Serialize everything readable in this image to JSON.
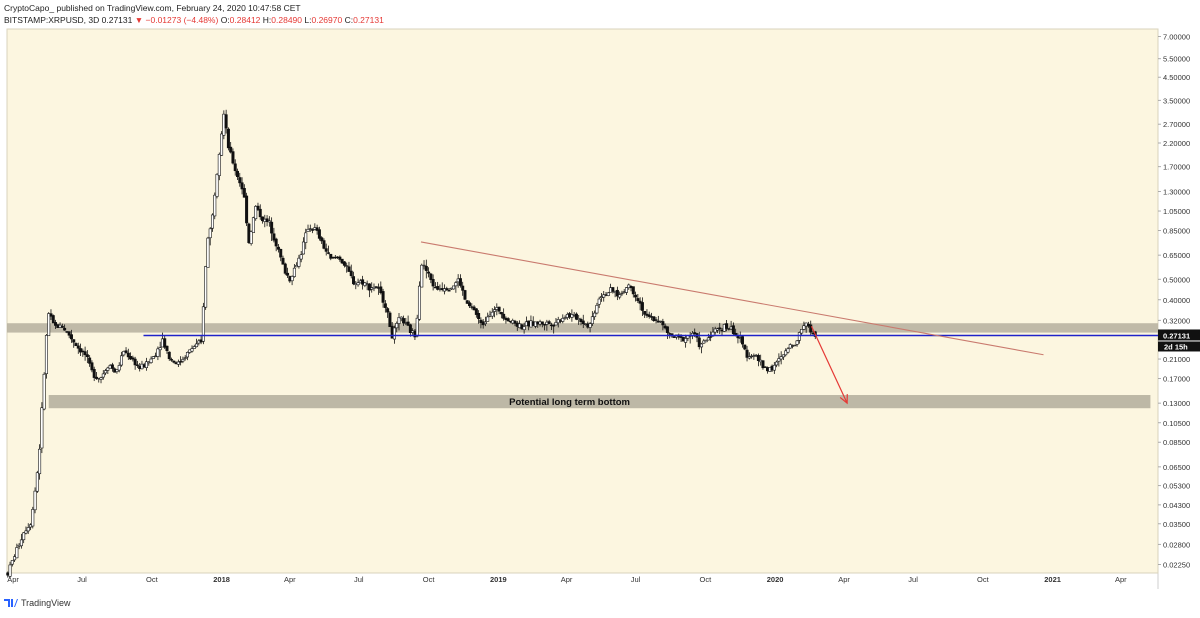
{
  "header": {
    "publisher": "CryptoCapo_",
    "published_text": "published on TradingView.com, February 24, 2020 10:47:58 CET",
    "symbol": "BITSTAMP:XRPUSD, 3D",
    "last": "0.27131",
    "change_arrow": "▼",
    "change": "−0.01273 (−4.48%)",
    "o_label": "O:",
    "o_val": "0.28412",
    "h_label": "H:",
    "h_val": "0.28490",
    "l_label": "L:",
    "l_val": "0.26970",
    "c_label": "C:",
    "c_val": "0.27131"
  },
  "footer": {
    "brand": "TradingView"
  },
  "chart_data": {
    "type": "candlestick",
    "title": "BITSTAMP:XRPUSD, 3D",
    "yscale": "log",
    "ylim": [
      0.0205,
      7.6
    ],
    "xlim": [
      "2017-03-24",
      "2021-05-20"
    ],
    "y_tick_labels": [
      "7.00000",
      "5.50000",
      "4.50000",
      "3.50000",
      "2.70000",
      "2.20000",
      "1.70000",
      "1.30000",
      "1.05000",
      "0.85000",
      "0.65000",
      "0.50000",
      "0.40000",
      "0.32000",
      "0.21000",
      "0.17000",
      "0.13000",
      "0.10500",
      "0.08500",
      "0.06500",
      "0.05300",
      "0.04300",
      "0.03500",
      "0.02800",
      "0.02250"
    ],
    "x_tick_labels": [
      {
        "label": "Apr",
        "date": "2017-04-01",
        "bold": false
      },
      {
        "label": "Jul",
        "date": "2017-07-01",
        "bold": false
      },
      {
        "label": "Oct",
        "date": "2017-10-01",
        "bold": false
      },
      {
        "label": "2018",
        "date": "2018-01-01",
        "bold": true
      },
      {
        "label": "Apr",
        "date": "2018-04-01",
        "bold": false
      },
      {
        "label": "Jul",
        "date": "2018-07-01",
        "bold": false
      },
      {
        "label": "Oct",
        "date": "2018-10-01",
        "bold": false
      },
      {
        "label": "2019",
        "date": "2019-01-01",
        "bold": true
      },
      {
        "label": "Apr",
        "date": "2019-04-01",
        "bold": false
      },
      {
        "label": "Jul",
        "date": "2019-07-01",
        "bold": false
      },
      {
        "label": "Oct",
        "date": "2019-10-01",
        "bold": false
      },
      {
        "label": "2020",
        "date": "2020-01-01",
        "bold": true
      },
      {
        "label": "Apr",
        "date": "2020-04-01",
        "bold": false
      },
      {
        "label": "Jul",
        "date": "2020-07-01",
        "bold": false
      },
      {
        "label": "Oct",
        "date": "2020-10-01",
        "bold": false
      },
      {
        "label": "2021",
        "date": "2021-01-01",
        "bold": true
      },
      {
        "label": "Apr",
        "date": "2021-04-01",
        "bold": false
      }
    ],
    "price_path": [
      [
        "2017-03-25",
        0.0205
      ],
      [
        "2017-04-05",
        0.026
      ],
      [
        "2017-04-15",
        0.032
      ],
      [
        "2017-04-25",
        0.036
      ],
      [
        "2017-05-05",
        0.07
      ],
      [
        "2017-05-12",
        0.18
      ],
      [
        "2017-05-17",
        0.35
      ],
      [
        "2017-05-25",
        0.3
      ],
      [
        "2017-06-05",
        0.3
      ],
      [
        "2017-06-15",
        0.27
      ],
      [
        "2017-06-25",
        0.24
      ],
      [
        "2017-07-05",
        0.22
      ],
      [
        "2017-07-15",
        0.18
      ],
      [
        "2017-07-25",
        0.17
      ],
      [
        "2017-08-05",
        0.2
      ],
      [
        "2017-08-15",
        0.18
      ],
      [
        "2017-08-25",
        0.23
      ],
      [
        "2017-09-05",
        0.21
      ],
      [
        "2017-09-15",
        0.19
      ],
      [
        "2017-09-25",
        0.2
      ],
      [
        "2017-10-05",
        0.22
      ],
      [
        "2017-10-15",
        0.26
      ],
      [
        "2017-10-25",
        0.21
      ],
      [
        "2017-11-05",
        0.2
      ],
      [
        "2017-11-15",
        0.22
      ],
      [
        "2017-11-25",
        0.24
      ],
      [
        "2017-12-05",
        0.25
      ],
      [
        "2017-12-13",
        0.75
      ],
      [
        "2017-12-20",
        1.0
      ],
      [
        "2017-12-28",
        1.9
      ],
      [
        "2018-01-04",
        3.0
      ],
      [
        "2018-01-10",
        2.1
      ],
      [
        "2018-01-20",
        1.6
      ],
      [
        "2018-01-30",
        1.3
      ],
      [
        "2018-02-06",
        0.75
      ],
      [
        "2018-02-15",
        1.1
      ],
      [
        "2018-02-25",
        0.95
      ],
      [
        "2018-03-05",
        0.92
      ],
      [
        "2018-03-15",
        0.72
      ],
      [
        "2018-03-25",
        0.55
      ],
      [
        "2018-04-01",
        0.5
      ],
      [
        "2018-04-15",
        0.65
      ],
      [
        "2018-04-25",
        0.88
      ],
      [
        "2018-05-05",
        0.86
      ],
      [
        "2018-05-15",
        0.72
      ],
      [
        "2018-05-25",
        0.62
      ],
      [
        "2018-06-05",
        0.64
      ],
      [
        "2018-06-15",
        0.56
      ],
      [
        "2018-06-25",
        0.48
      ],
      [
        "2018-07-05",
        0.49
      ],
      [
        "2018-07-15",
        0.46
      ],
      [
        "2018-07-25",
        0.46
      ],
      [
        "2018-08-05",
        0.38
      ],
      [
        "2018-08-14",
        0.27
      ],
      [
        "2018-08-25",
        0.33
      ],
      [
        "2018-09-05",
        0.29
      ],
      [
        "2018-09-14",
        0.27
      ],
      [
        "2018-09-21",
        0.6
      ],
      [
        "2018-09-28",
        0.55
      ],
      [
        "2018-10-10",
        0.45
      ],
      [
        "2018-10-20",
        0.46
      ],
      [
        "2018-11-01",
        0.46
      ],
      [
        "2018-11-10",
        0.5
      ],
      [
        "2018-11-20",
        0.38
      ],
      [
        "2018-11-30",
        0.36
      ],
      [
        "2018-12-10",
        0.3
      ],
      [
        "2018-12-20",
        0.35
      ],
      [
        "2019-01-01",
        0.36
      ],
      [
        "2019-01-15",
        0.32
      ],
      [
        "2019-02-01",
        0.3
      ],
      [
        "2019-02-15",
        0.31
      ],
      [
        "2019-03-01",
        0.31
      ],
      [
        "2019-03-15",
        0.31
      ],
      [
        "2019-04-01",
        0.34
      ],
      [
        "2019-04-15",
        0.33
      ],
      [
        "2019-05-01",
        0.3
      ],
      [
        "2019-05-15",
        0.42
      ],
      [
        "2019-05-30",
        0.44
      ],
      [
        "2019-06-10",
        0.42
      ],
      [
        "2019-06-22",
        0.47
      ],
      [
        "2019-07-05",
        0.4
      ],
      [
        "2019-07-15",
        0.33
      ],
      [
        "2019-08-01",
        0.32
      ],
      [
        "2019-08-15",
        0.27
      ],
      [
        "2019-09-01",
        0.26
      ],
      [
        "2019-09-15",
        0.28
      ],
      [
        "2019-09-25",
        0.24
      ],
      [
        "2019-10-10",
        0.28
      ],
      [
        "2019-10-25",
        0.3
      ],
      [
        "2019-11-05",
        0.29
      ],
      [
        "2019-11-15",
        0.26
      ],
      [
        "2019-11-25",
        0.22
      ],
      [
        "2019-12-05",
        0.22
      ],
      [
        "2019-12-18",
        0.19
      ],
      [
        "2019-12-28",
        0.19
      ],
      [
        "2020-01-08",
        0.21
      ],
      [
        "2020-01-20",
        0.24
      ],
      [
        "2020-01-30",
        0.26
      ],
      [
        "2020-02-10",
        0.32
      ],
      [
        "2020-02-15",
        0.29
      ],
      [
        "2020-02-24",
        0.27131
      ]
    ],
    "annotations": {
      "resistance_band": {
        "y_low": 0.28,
        "y_high": 0.31,
        "x_start": "2017-03-24",
        "x_end": "2021-05-20",
        "color": "#b9b4a2"
      },
      "support_line": {
        "y": 0.27131,
        "x_start": "2017-09-20",
        "x_end": "2021-05-20",
        "color": "#1f22c9"
      },
      "bottom_band": {
        "y_low": 0.123,
        "y_high": 0.142,
        "x_start": "2017-05-18",
        "x_end": "2021-05-10",
        "color": "#b9b4a2",
        "label": "Potential long term bottom"
      },
      "downtrend_line": {
        "from": [
          "2018-09-21",
          0.75
        ],
        "to": [
          "2020-12-20",
          0.22
        ],
        "color": "#c97a6e"
      },
      "projection_arrow": {
        "from": [
          "2020-02-18",
          0.3
        ],
        "to": [
          "2020-04-05",
          0.13
        ],
        "color": "#e53935"
      }
    },
    "last_price_label": "0.27131",
    "countdown_label": "2d 15h",
    "colors": {
      "background": "#fcf6e0",
      "candle": "#111111",
      "text": "#333333"
    }
  }
}
